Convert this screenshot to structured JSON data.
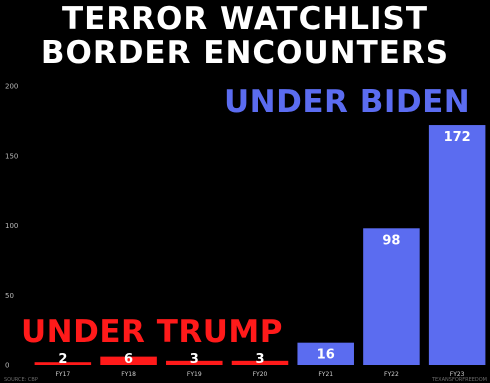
{
  "title_lines": [
    "TERROR WATCHLIST",
    "BORDER ENCOUNTERS"
  ],
  "colors": {
    "background": "#000000",
    "trump": "#ff1a1a",
    "biden": "#5b6cf0",
    "text": "#ffffff"
  },
  "annotations": {
    "trump": "UNDER TRUMP",
    "biden": "UNDER BIDEN",
    "source_left": "SOURCE: CBP",
    "source_right": "TEXANSFORFREEDOM"
  },
  "chart_data": {
    "type": "bar",
    "categories": [
      "FY17",
      "FY18",
      "FY19",
      "FY20",
      "FY21",
      "FY22",
      "FY23"
    ],
    "values": [
      2,
      6,
      3,
      3,
      16,
      98,
      172
    ],
    "bar_colors": [
      "#ff1a1a",
      "#ff1a1a",
      "#ff1a1a",
      "#ff1a1a",
      "#5b6cf0",
      "#5b6cf0",
      "#5b6cf0"
    ],
    "yticks": [
      0,
      50,
      100,
      150,
      200
    ],
    "ylim": [
      0,
      200
    ],
    "grid": false,
    "legend": "none"
  }
}
